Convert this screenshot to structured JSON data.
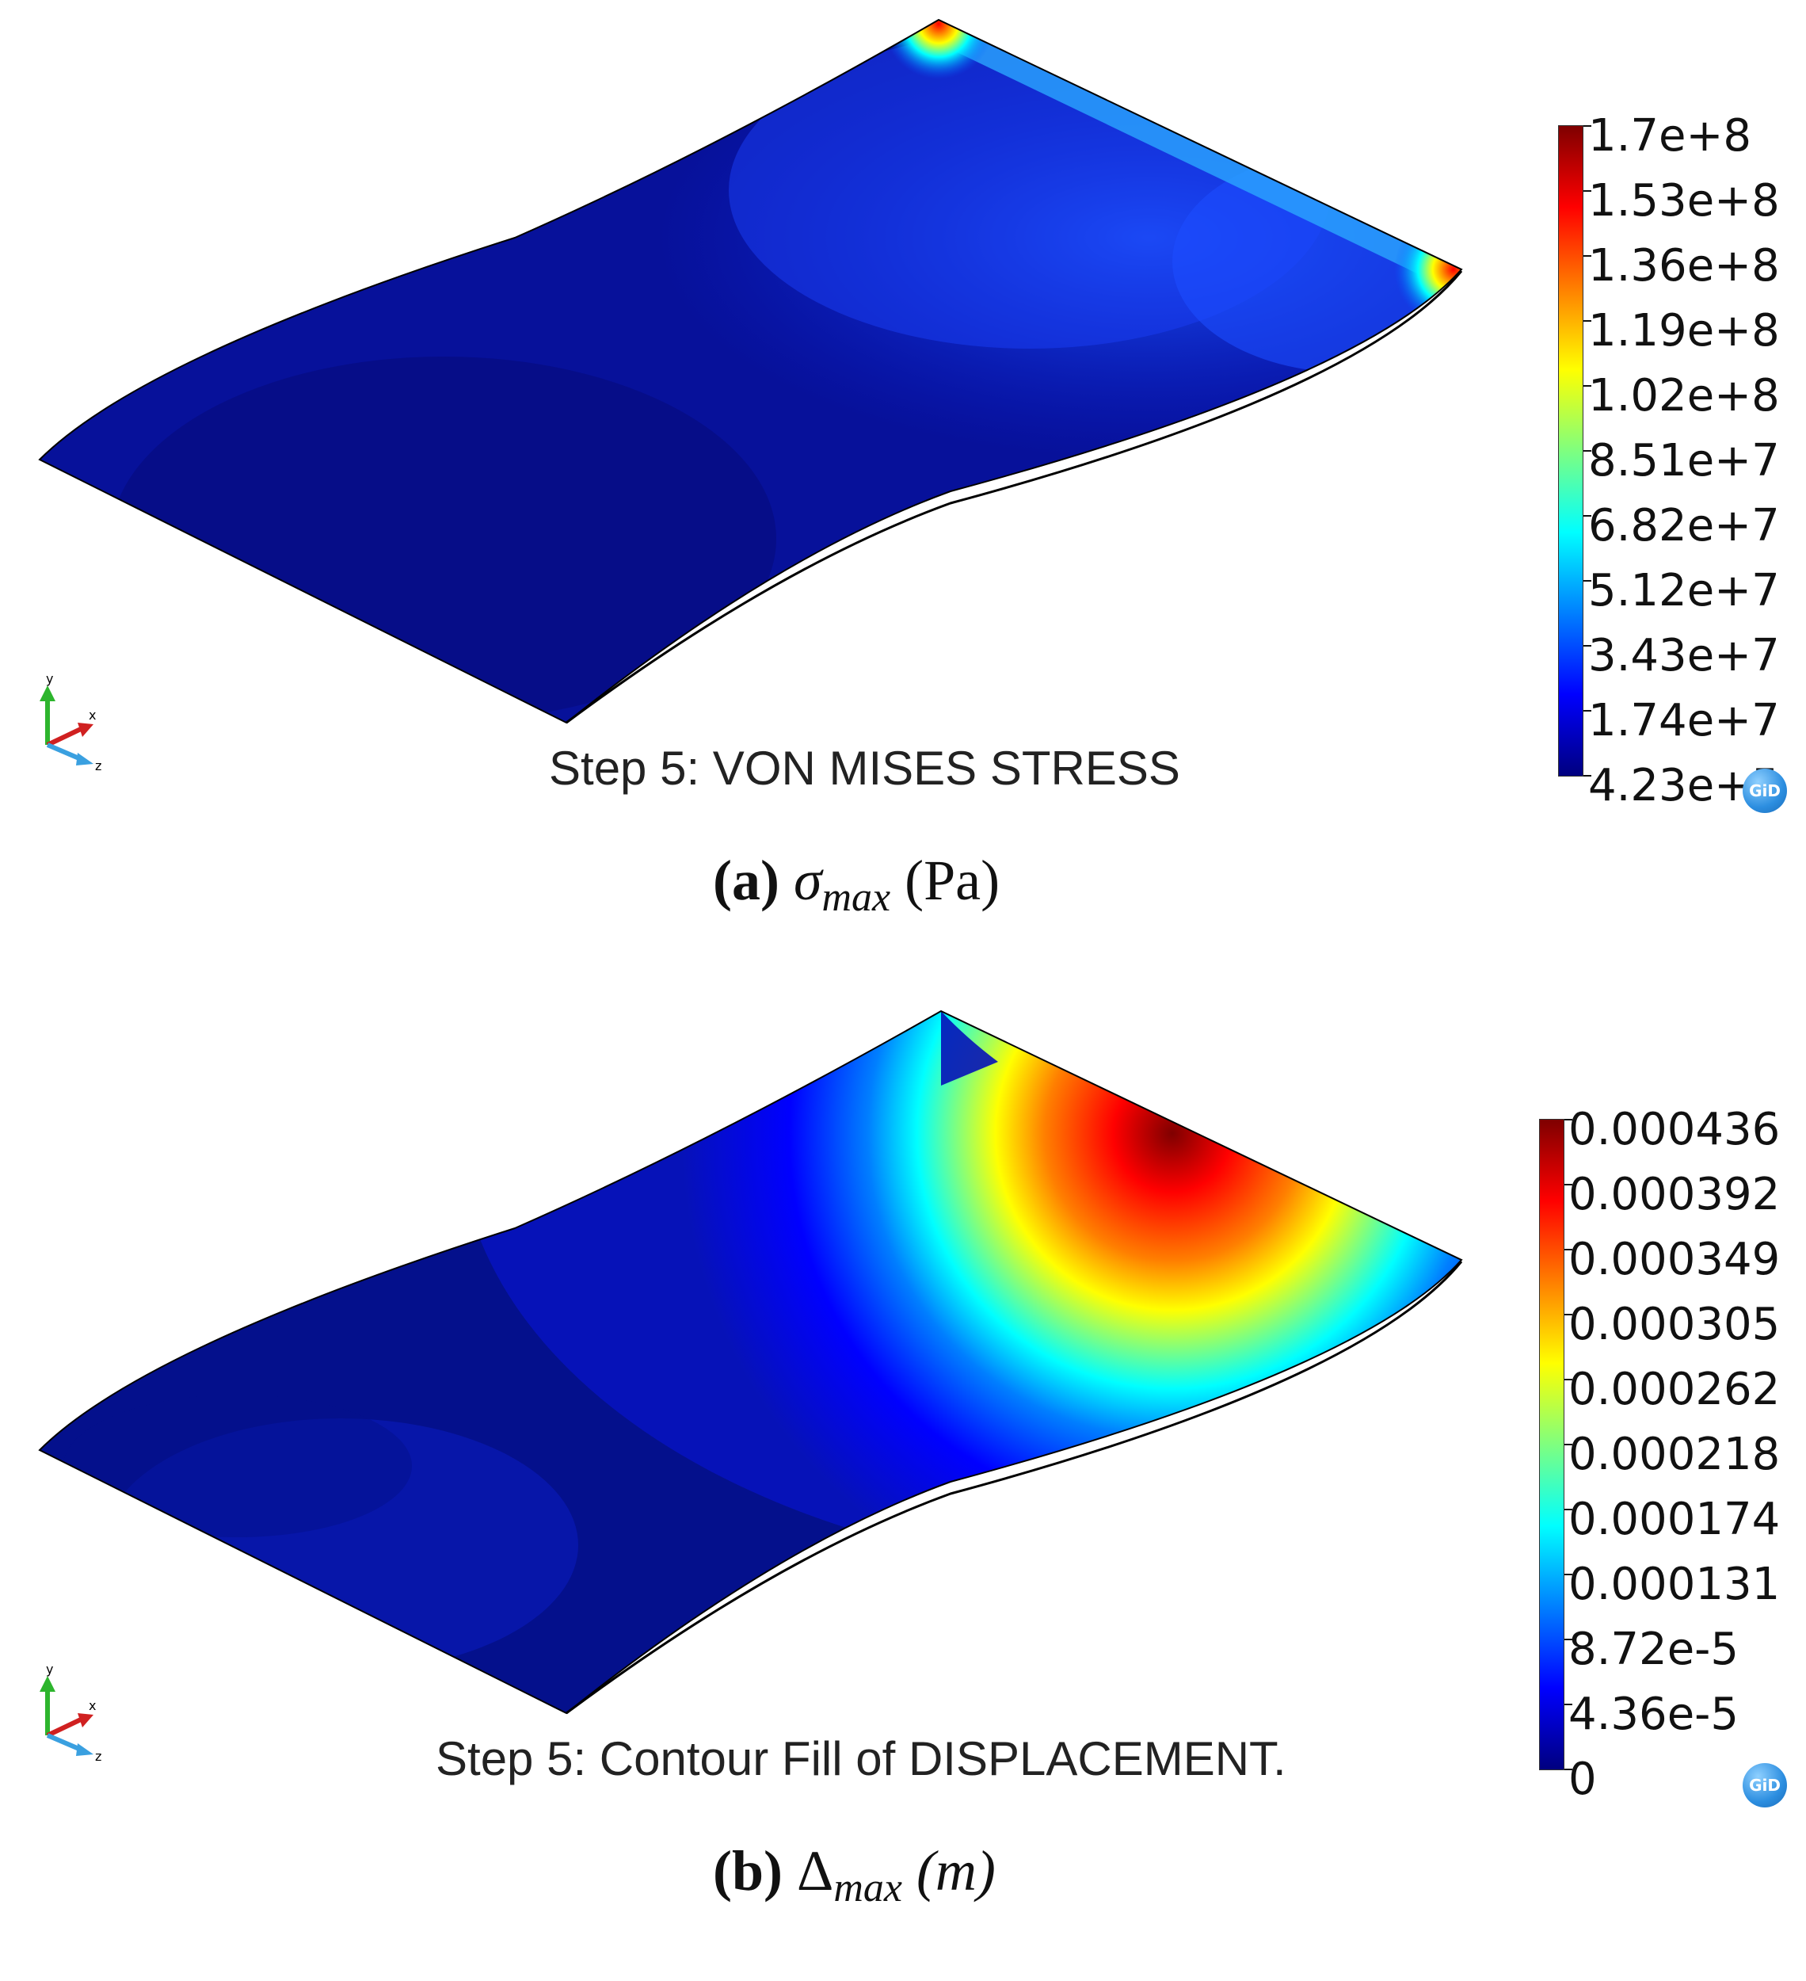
{
  "panels": [
    {
      "step_title": "Step 5: VON MISES STRESS",
      "caption": {
        "letter": "(a)",
        "symbol": "σ",
        "subscript": "max",
        "unit": "(Pa)"
      },
      "legend": {
        "labels": [
          "1.7e+8",
          "1.53e+8",
          "1.36e+8",
          "1.19e+8",
          "1.02e+8",
          "8.51e+7",
          "6.82e+7",
          "5.12e+7",
          "3.43e+7",
          "1.74e+7",
          "4.23e+5"
        ],
        "colormap": [
          "#00007f",
          "#0000ff",
          "#007fff",
          "#00ffff",
          "#7fff7f",
          "#ffff00",
          "#ff7f00",
          "#ff0000",
          "#7f0000"
        ]
      },
      "axes": {
        "x": "x",
        "y": "y",
        "z": "z"
      },
      "logo": "GiD"
    },
    {
      "step_title": "Step 5: Contour Fill of DISPLACEMENT.",
      "caption": {
        "letter": "(b)",
        "symbol": "Δ",
        "subscript": "max",
        "unit": "(m)"
      },
      "legend": {
        "labels": [
          "0.000436",
          "0.000392",
          "0.000349",
          "0.000305",
          "0.000262",
          "0.000218",
          "0.000174",
          "0.000131",
          "8.72e-5",
          "4.36e-5",
          "0"
        ],
        "colormap": [
          "#00007f",
          "#0000ff",
          "#007fff",
          "#00ffff",
          "#7fff7f",
          "#ffff00",
          "#ff7f00",
          "#ff0000",
          "#7f0000"
        ]
      },
      "axes": {
        "x": "x",
        "y": "y",
        "z": "z"
      },
      "logo": "GiD"
    }
  ]
}
